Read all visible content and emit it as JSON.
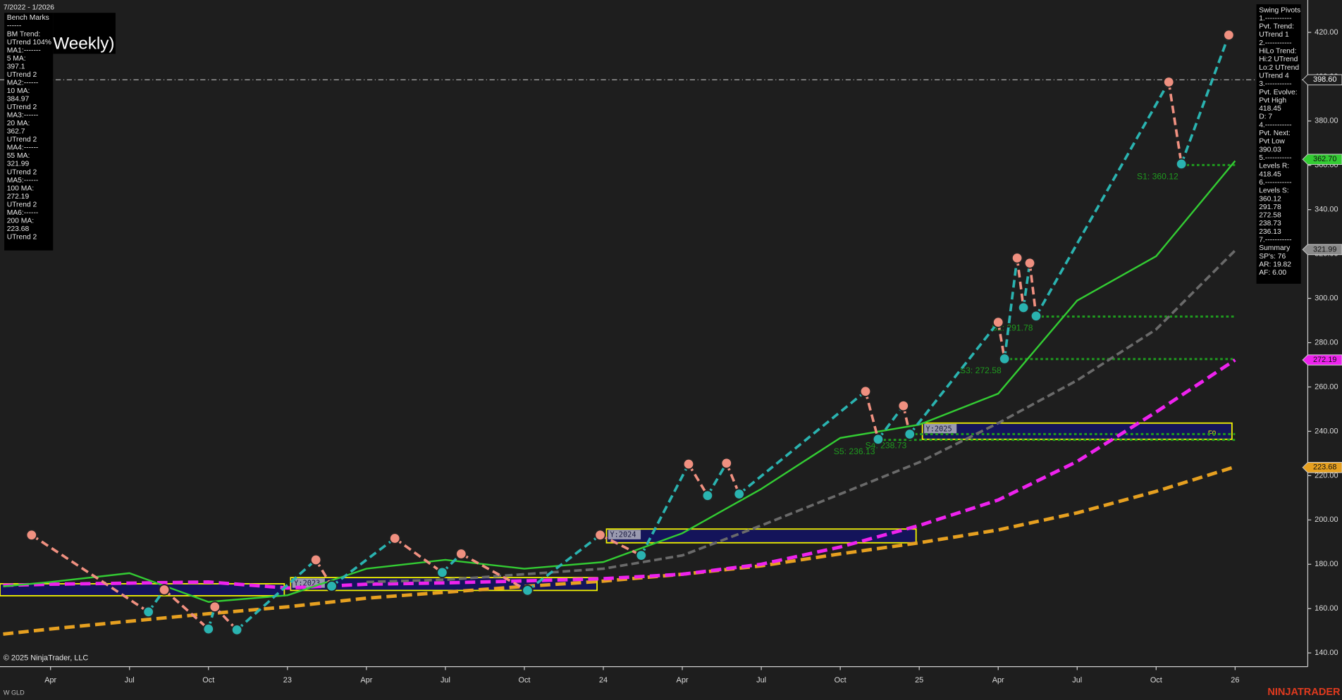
{
  "chart_data": {
    "type": "line",
    "date_range": "7/2022 - 1/2026",
    "title": "Weekly)",
    "copyright": "© 2025 NinjaTrader, LLC",
    "instrument": "W GLD",
    "brand": "NINJATRADER",
    "xlim": [
      2022.09,
      2026.23
    ],
    "xticks": [
      {
        "value": 2022.25,
        "label": "Apr"
      },
      {
        "value": 2022.5,
        "label": "Jul"
      },
      {
        "value": 2022.75,
        "label": "Oct"
      },
      {
        "value": 2023,
        "label": "23"
      },
      {
        "value": 2023.25,
        "label": "Apr"
      },
      {
        "value": 2023.5,
        "label": "Jul"
      },
      {
        "value": 2023.75,
        "label": "Oct"
      },
      {
        "value": 2024,
        "label": "24"
      },
      {
        "value": 2024.25,
        "label": "Apr"
      },
      {
        "value": 2024.5,
        "label": "Jul"
      },
      {
        "value": 2024.75,
        "label": "Oct"
      },
      {
        "value": 2025,
        "label": "25"
      },
      {
        "value": 2025.25,
        "label": "Apr"
      },
      {
        "value": 2025.5,
        "label": "Jul"
      },
      {
        "value": 2025.75,
        "label": "Oct"
      },
      {
        "value": 2026,
        "label": "26"
      }
    ],
    "ylim": [
      133.8,
      434.6
    ],
    "yticks": [
      {
        "value": 140,
        "label": "140.00"
      },
      {
        "value": 160,
        "label": "160.00"
      },
      {
        "value": 180,
        "label": "180.00"
      },
      {
        "value": 200,
        "label": "200.00"
      },
      {
        "value": 220,
        "label": "220.00"
      },
      {
        "value": 240,
        "label": "240.00"
      },
      {
        "value": 260,
        "label": "260.00"
      },
      {
        "value": 280,
        "label": "280.00"
      },
      {
        "value": 300,
        "label": "300.00"
      },
      {
        "value": 320,
        "label": "320.00"
      },
      {
        "value": 340,
        "label": "340.00"
      },
      {
        "value": 360,
        "label": "360.00"
      },
      {
        "value": 380,
        "label": "380.00"
      },
      {
        "value": 400,
        "label": "400.00"
      },
      {
        "value": 420,
        "label": "420.00"
      }
    ],
    "x": [
      2022.1,
      2022.25,
      2022.5,
      2022.75,
      2023,
      2023.25,
      2023.5,
      2023.75,
      2024,
      2024.25,
      2024.5,
      2024.75,
      2025,
      2025.25,
      2025.5,
      2025.75,
      2026
    ],
    "series": [
      {
        "color": "#e6a020",
        "dash": true,
        "width": 4,
        "values": [
          148.5,
          150.8,
          154.3,
          157.7,
          160.8,
          164.7,
          167.4,
          170,
          172.4,
          175.5,
          179.3,
          184.7,
          189.7,
          195.5,
          203.2,
          212.9,
          224
        ]
      },
      {
        "color": "#ee22ee",
        "dash": true,
        "width": 4,
        "values": [
          170.5,
          171,
          171.5,
          172,
          169.3,
          171,
          171.6,
          172.5,
          173.5,
          175.5,
          180,
          187.8,
          197.5,
          209,
          226.4,
          248.7,
          272.2
        ]
      },
      {
        "color": "#6a6a6a",
        "dash": true,
        "width": 3,
        "values": [
          null,
          null,
          null,
          null,
          null,
          172,
          173,
          175.5,
          178,
          184,
          197.5,
          211.7,
          226,
          243.7,
          263,
          286,
          321.6
        ]
      },
      {
        "color": "#33cc33",
        "dash": false,
        "width": 2,
        "values": [
          170,
          172,
          176,
          163,
          166,
          178,
          182,
          178,
          181,
          194,
          214,
          237,
          243,
          257,
          299,
          319,
          362
        ]
      }
    ],
    "pivots": {
      "up_color": "#2ab3b0",
      "down_color": "#f09080",
      "x": [
        2022.19,
        2022.56,
        2022.61,
        2022.75,
        2022.77,
        2022.84,
        2023.09,
        2023.14,
        2023.34,
        2023.49,
        2023.55,
        2023.76,
        2023.99,
        2024.12,
        2024.27,
        2024.33,
        2024.39,
        2024.43,
        2024.83,
        2024.87,
        2024.95,
        2024.97,
        2025.25,
        2025.27,
        2025.31,
        2025.33,
        2025.35,
        2025.37,
        2025.79,
        2025.83,
        2025.98
      ],
      "values": [
        193.2,
        158.5,
        168.5,
        150.8,
        160.8,
        150.4,
        182,
        170.1,
        191.7,
        176.3,
        184.7,
        168.2,
        193.2,
        184,
        225.2,
        211,
        225.6,
        211.7,
        258,
        236.4,
        251.5,
        238.7,
        289.2,
        272.7,
        318.2,
        295.8,
        315.9,
        292,
        397.6,
        360.6,
        418.8
      ]
    },
    "levels": {
      "color": "#1f9a1f",
      "x_end": 2026,
      "x_start": [
        2025.83,
        2025.37,
        2025.27,
        2024.97,
        2024.87
      ],
      "values": [
        360.12,
        291.78,
        272.58,
        238.73,
        236.13
      ],
      "value_labels": [
        "S1: 360.12",
        "S2: 291.78",
        "S3: 272.58",
        "S4: 238.73",
        "S5: 236.13"
      ]
    },
    "ref_line": 398.6,
    "price_tags": {
      "values": [
        398.6,
        362.7,
        321.99,
        272.19,
        223.68
      ],
      "value_labels": [
        "398.60",
        "362.70",
        "321.99",
        "272.19",
        "223.68"
      ],
      "colors": [
        "#1e1e1e",
        "#33cc33",
        "#8a8a8a",
        "#ee22ee",
        "#e6a020"
      ]
    },
    "year_boxes": [
      {
        "x": [
          2022.09,
          2022.99
        ],
        "range": [
          165.8,
          171.2
        ]
      },
      {
        "x": [
          2023.01,
          2023.98
        ],
        "range": [
          168.2,
          174
        ],
        "label": "Y:2023"
      },
      {
        "x": [
          2024.01,
          2024.99
        ],
        "range": [
          189.7,
          195.9
        ],
        "label": "Y:2024"
      },
      {
        "x": [
          2025.01,
          2025.99
        ],
        "range": [
          236.4,
          243.7
        ],
        "label": "Y:2025",
        "tag": "F0"
      }
    ],
    "panel_left": [
      "Bench Marks",
      "------",
      "BM Trend:",
      "UTrend 104%",
      "MA1:-------",
      "5 MA:",
      "397.1",
      "UTrend 2",
      "MA2:------",
      "10 MA:",
      "384.97",
      "UTrend 2",
      "MA3:------",
      "20 MA:",
      "362.7",
      "UTrend 2",
      "MA4:------",
      "55 MA:",
      "321.99",
      "UTrend 2",
      "MA5:------",
      "100 MA:",
      "272.19",
      "UTrend 2",
      "MA6:------",
      "200 MA:",
      "223.68",
      "UTrend 2"
    ],
    "panel_right": [
      "Swing Pivots",
      "1.-----------",
      "Pvt. Trend:",
      "UTrend 1",
      "2.-----------",
      "HiLo Trend:",
      "Hi:2 UTrend",
      "Lo:2 UTrend",
      "UTrend 4",
      "3.-----------",
      "Pvt. Evolve:",
      "Pvt High",
      "418.45",
      "D: 7",
      "4.-----------",
      "Pvt. Next:",
      "Pvt Low",
      "390.03",
      "5.-----------",
      "Levels R:",
      "418.45",
      "6.-----------",
      "Levels S:",
      "360.12",
      "291.78",
      "272.58",
      "238.73",
      "236.13",
      "7.-----------",
      "Summary",
      "SP's: 76",
      "AR: 19.82",
      "AF: 6.00"
    ]
  }
}
